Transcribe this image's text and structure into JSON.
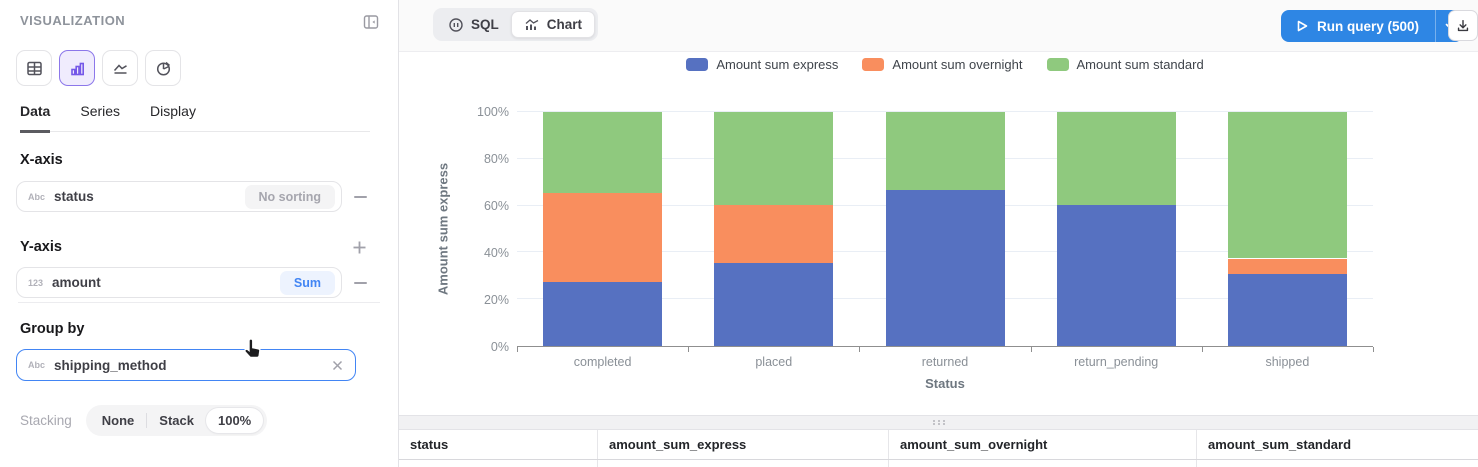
{
  "sidebar": {
    "title": "VISUALIZATION",
    "viz_types": [
      {
        "name": "table",
        "selected": false
      },
      {
        "name": "bar-chart",
        "selected": true
      },
      {
        "name": "area-chart",
        "selected": false
      },
      {
        "name": "pie-chart",
        "selected": false
      }
    ],
    "tabs": [
      {
        "label": "Data",
        "active": true
      },
      {
        "label": "Series",
        "active": false
      },
      {
        "label": "Display",
        "active": false
      }
    ],
    "x_axis": {
      "heading": "X-axis",
      "field_type": "Abc",
      "field": "status",
      "sort_label": "No sorting"
    },
    "y_axis": {
      "heading": "Y-axis",
      "field_type": "123",
      "field": "amount",
      "agg_label": "Sum"
    },
    "group_by": {
      "heading": "Group by",
      "field_type": "Abc",
      "field": "shipping_method"
    },
    "stacking": {
      "label": "Stacking",
      "options": [
        "None",
        "Stack",
        "100%"
      ],
      "selected": "100%"
    }
  },
  "toolbar": {
    "view_tabs": [
      {
        "label": "SQL",
        "active": false
      },
      {
        "label": "Chart",
        "active": true
      }
    ],
    "run_button_label": "Run query (500)",
    "run_button_color": "#2e86e4"
  },
  "chart_data": {
    "type": "bar",
    "stacking": "percent",
    "title": "",
    "xlabel": "Status",
    "ylabel": "Amount sum express",
    "categories": [
      "completed",
      "placed",
      "returned",
      "return_pending",
      "shipped"
    ],
    "series": [
      {
        "name": "Amount sum express",
        "color": "#5671c1",
        "values": [
          27.2,
          35.3,
          66.5,
          60.4,
          30.6
        ]
      },
      {
        "name": "Amount sum overnight",
        "color": "#f98e5e",
        "values": [
          38.3,
          25.1,
          0.0,
          0.0,
          6.8
        ]
      },
      {
        "name": "Amount sum standard",
        "color": "#8fc97e",
        "values": [
          34.5,
          39.6,
          33.5,
          39.6,
          62.6
        ]
      }
    ],
    "ylim": [
      0,
      100
    ],
    "y_ticks": [
      "0%",
      "20%",
      "40%",
      "60%",
      "80%",
      "100%"
    ],
    "grid": true,
    "legend_position": "top"
  },
  "table": {
    "columns": [
      "status",
      "amount_sum_express",
      "amount_sum_overnight",
      "amount_sum_standard"
    ]
  }
}
